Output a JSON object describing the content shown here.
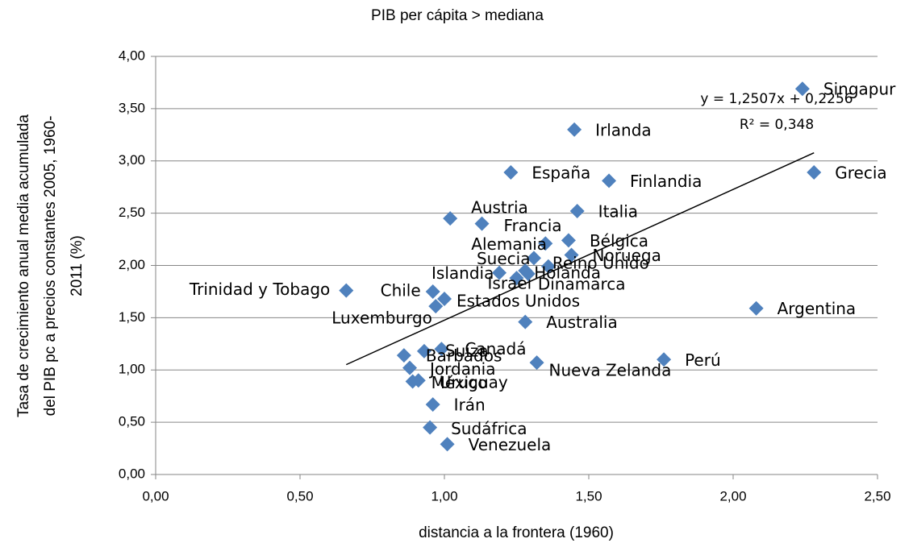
{
  "chart_data": {
    "type": "scatter",
    "title": "PIB per cápita > mediana",
    "x_label": "distancia a la frontera (1960)",
    "y_label_lines": [
      "Tasa de crecimiento anual media acumulada",
      "del PIB pc a precios constantes 2005, 1960-",
      "2011 (%)"
    ],
    "color": "#4f81bd",
    "grid": true,
    "xlim": [
      0,
      2.5
    ],
    "ylim": [
      0,
      4
    ],
    "xticks": [
      {
        "value": 0,
        "label": "0,00"
      },
      {
        "value": 0.5,
        "label": "0,50"
      },
      {
        "value": 1,
        "label": "1,00"
      },
      {
        "value": 1.5,
        "label": "1,50"
      },
      {
        "value": 2,
        "label": "2,00"
      },
      {
        "value": 2.5,
        "label": "2,50"
      }
    ],
    "yticks": [
      {
        "value": 0,
        "label": "0,00"
      },
      {
        "value": 0.5,
        "label": "0,50"
      },
      {
        "value": 1,
        "label": "1,00"
      },
      {
        "value": 1.5,
        "label": "1,50"
      },
      {
        "value": 2,
        "label": "2,00"
      },
      {
        "value": 2.5,
        "label": "2,50"
      },
      {
        "value": 3,
        "label": "3,00"
      },
      {
        "value": 3.5,
        "label": "3,50"
      },
      {
        "value": 4,
        "label": "4,00"
      }
    ],
    "labels": [
      "Singapur",
      "Irlanda",
      "España",
      "Finlandia",
      "Grecia",
      "Austria",
      "Francia",
      "Italia",
      "Alemania",
      "Bélgica",
      "Noruega",
      "Suecia",
      "Reino Unido",
      "Islandia",
      "Holanda",
      "Israel",
      "Dinamarca",
      "Trinidad y Tobago",
      "Chile",
      "Estados Unidos",
      "Luxemburgo",
      "Argentina",
      "Australia",
      "Perú",
      "Nueva Zelanda",
      "Canadá",
      "Suiza",
      "Barbados",
      "Jordania",
      "México",
      "Uruguay",
      "Irán",
      "Sudáfrica",
      "Venezuela"
    ],
    "x": [
      2.24,
      1.45,
      1.23,
      1.57,
      2.28,
      1.02,
      1.13,
      1.46,
      1.35,
      1.43,
      1.44,
      1.31,
      1.36,
      1.19,
      1.28,
      1.25,
      1.29,
      0.66,
      0.96,
      1.0,
      0.97,
      2.08,
      1.28,
      1.76,
      1.32,
      0.99,
      0.93,
      0.86,
      0.88,
      0.89,
      0.91,
      0.96,
      0.95,
      1.01
    ],
    "values": [
      3.69,
      3.3,
      2.89,
      2.81,
      2.89,
      2.45,
      2.4,
      2.52,
      2.21,
      2.24,
      2.1,
      2.07,
      1.99,
      1.93,
      1.95,
      1.88,
      1.92,
      1.76,
      1.75,
      1.68,
      1.61,
      1.59,
      1.46,
      1.1,
      1.07,
      1.2,
      1.18,
      1.14,
      1.02,
      0.89,
      0.9,
      0.67,
      0.45,
      0.29
    ],
    "trendline": {
      "label": "y = 1,2507x + 0,2256",
      "r2_label": "R² = 0,348",
      "slope": 1.2507,
      "intercept": 0.2256
    }
  }
}
